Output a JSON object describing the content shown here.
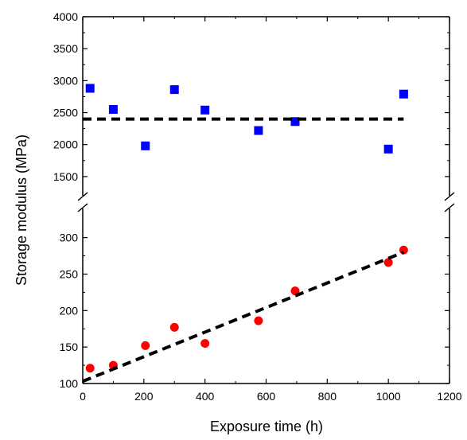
{
  "chart_data": {
    "type": "scatter",
    "xlabel": "Exposure time (h)",
    "ylabel": "Storage modulus (MPa)",
    "xlim": [
      0,
      1200
    ],
    "x_ticks": [
      0,
      200,
      400,
      600,
      800,
      1000,
      1200
    ],
    "broken_y_axis": true,
    "panels": [
      {
        "name": "upper",
        "ylim": [
          1200,
          4000
        ],
        "y_ticks": [
          1500,
          2000,
          2500,
          3000,
          3500,
          4000
        ],
        "series": [
          {
            "marker": "square",
            "color": "#0000ff",
            "x": [
              24,
              100,
              205,
              300,
              400,
              575,
              695,
              1000,
              1050
            ],
            "y": [
              2880,
              2550,
              1980,
              2860,
              2540,
              2220,
              2360,
              1930,
              2790
            ]
          }
        ],
        "fit_lines": [
          {
            "style": "dashed",
            "color": "#000000",
            "x": [
              0,
              1050
            ],
            "y": [
              2400,
              2400
            ]
          }
        ]
      },
      {
        "name": "lower",
        "ylim": [
          100,
          340
        ],
        "y_ticks": [
          100,
          150,
          200,
          250,
          300
        ],
        "series": [
          {
            "marker": "circle",
            "color": "#ff0000",
            "x": [
              24,
              100,
              205,
              300,
              400,
              575,
              695,
              1000,
              1050
            ],
            "y": [
              121,
              125,
              152,
              177,
              155,
              186,
              227,
              266,
              283
            ]
          }
        ],
        "fit_lines": [
          {
            "style": "dashed",
            "color": "#000000",
            "x": [
              0,
              1050
            ],
            "y": [
              103,
              280
            ]
          }
        ]
      }
    ]
  }
}
